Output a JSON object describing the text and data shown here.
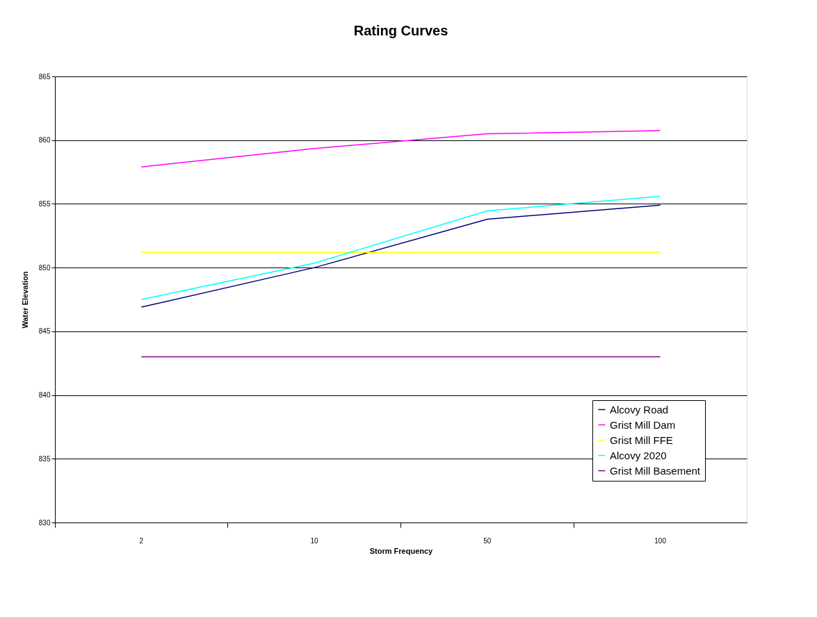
{
  "chart_data": {
    "type": "line",
    "title": "Rating Curves",
    "xlabel": "Storm Frequency",
    "ylabel": "Water Elevation",
    "categories": [
      "2",
      "10",
      "50",
      "100"
    ],
    "series": [
      {
        "name": "Alcovy Road",
        "color": "#000080",
        "values": [
          846.9,
          850.0,
          853.8,
          854.9
        ]
      },
      {
        "name": "Grist Mill Dam",
        "color": "#ff00ff",
        "values": [
          857.9,
          859.35,
          860.5,
          860.75
        ]
      },
      {
        "name": "Grist Mill FFE",
        "color": "#ffff00",
        "values": [
          851.2,
          851.2,
          851.2,
          851.2
        ]
      },
      {
        "name": "Alcovy 2020",
        "color": "#00ffff",
        "values": [
          847.5,
          850.35,
          854.45,
          855.6
        ]
      },
      {
        "name": "Grist Mill Basement",
        "color": "#800080",
        "values": [
          843.0,
          843.0,
          843.0,
          843.0
        ]
      }
    ],
    "ylim": [
      830,
      865
    ],
    "yticks": [
      830,
      835,
      840,
      845,
      850,
      855,
      860,
      865
    ],
    "grid": "y",
    "legend": "bottom right",
    "marker": "none",
    "line_style": "solid"
  }
}
